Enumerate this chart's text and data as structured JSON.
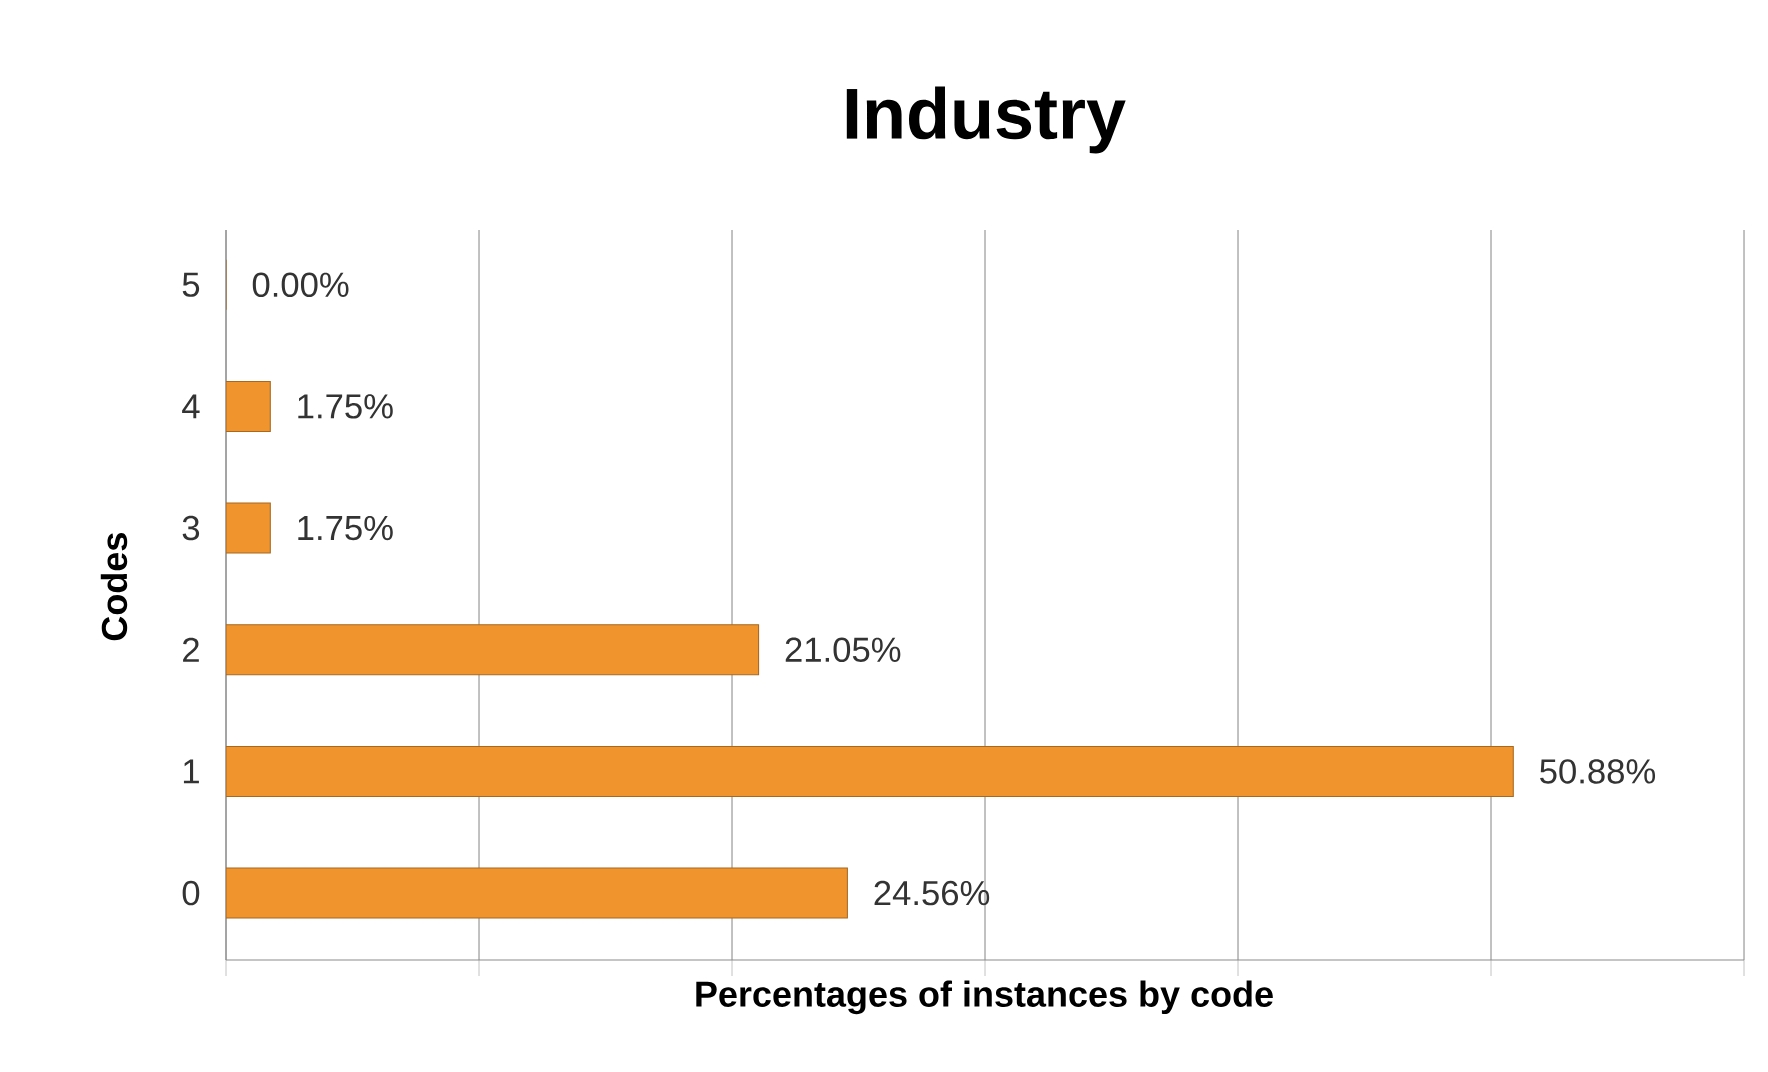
{
  "chart_data": {
    "type": "bar",
    "orientation": "horizontal",
    "title": "Industry",
    "xlabel": "Percentages of instances by code",
    "ylabel": "Codes",
    "categories": [
      "5",
      "4",
      "3",
      "2",
      "1",
      "0"
    ],
    "values": [
      0,
      1.75,
      1.75,
      21.05,
      50.88,
      24.56
    ],
    "value_labels": [
      "0.00%",
      "1.75%",
      "1.75%",
      "21.05%",
      "50.88%",
      "24.56%"
    ],
    "color": "#f0952d",
    "xlim": [
      0,
      60
    ],
    "xticks": [
      {
        "value": 0,
        "label": null
      },
      {
        "value": 10,
        "label": null
      },
      {
        "value": 20,
        "label": null
      },
      {
        "value": 30,
        "label": null
      },
      {
        "value": 40,
        "label": null
      },
      {
        "value": 50,
        "label": null
      },
      {
        "value": 60,
        "label": null
      }
    ],
    "grid": "x",
    "tick_labels": "y"
  }
}
